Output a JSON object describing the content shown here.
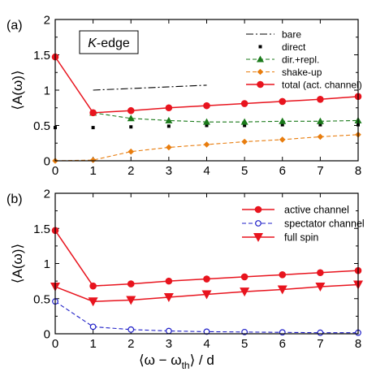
{
  "chart_data": [
    {
      "type": "line",
      "panel_label": "(a)",
      "annotation": "K-edge",
      "ylabel": "⟨A(ω)⟩",
      "xlim": [
        0,
        8
      ],
      "ylim": [
        0,
        2
      ],
      "x_ticks": [
        "0",
        "1",
        "2",
        "3",
        "4",
        "5",
        "6",
        "7",
        "8"
      ],
      "y_ticks": [
        "0",
        "0.5",
        "1",
        "1.5",
        "2"
      ],
      "legend_position": "top-right",
      "series": [
        {
          "name": "bare",
          "color": "#000000",
          "style": "dash-dot",
          "marker": "none",
          "x": [
            1,
            4
          ],
          "y": [
            1.0,
            1.07
          ]
        },
        {
          "name": "direct",
          "color": "#000000",
          "style": "none",
          "marker": "square",
          "x": [
            0,
            1,
            2,
            3,
            4,
            5,
            6,
            7,
            8
          ],
          "y": [
            0.47,
            0.47,
            0.48,
            0.49,
            0.5,
            0.5,
            0.51,
            0.51,
            0.51
          ]
        },
        {
          "name": "dir.+repl.",
          "color": "#1a7a1a",
          "style": "dashed",
          "marker": "triangle-up",
          "x": [
            1,
            2,
            3,
            4,
            5,
            6,
            7,
            8
          ],
          "y": [
            0.68,
            0.6,
            0.57,
            0.55,
            0.55,
            0.56,
            0.56,
            0.57
          ]
        },
        {
          "name": "shake-up",
          "color": "#e87d0e",
          "style": "dashed",
          "marker": "diamond",
          "x": [
            0,
            1,
            2,
            3,
            4,
            5,
            6,
            7,
            8
          ],
          "y": [
            0.0,
            0.01,
            0.13,
            0.19,
            0.23,
            0.27,
            0.3,
            0.34,
            0.37
          ]
        },
        {
          "name": "total (act. channel)",
          "color": "#e8141e",
          "style": "solid",
          "marker": "circle",
          "x": [
            0,
            1,
            2,
            3,
            4,
            5,
            6,
            7,
            8
          ],
          "y": [
            1.47,
            0.68,
            0.71,
            0.75,
            0.78,
            0.81,
            0.84,
            0.87,
            0.91
          ]
        }
      ]
    },
    {
      "type": "line",
      "panel_label": "(b)",
      "xlabel": "⟨ω − ω",
      "xlabel_sub": "th",
      "xlabel_tail": "⟩ / d",
      "ylabel": "⟨A(ω)⟩",
      "xlim": [
        0,
        8
      ],
      "ylim": [
        0,
        2
      ],
      "x_ticks": [
        "0",
        "1",
        "2",
        "3",
        "4",
        "5",
        "6",
        "7",
        "8"
      ],
      "y_ticks": [
        "0",
        "0.5",
        "1",
        "1.5",
        "2"
      ],
      "legend_position": "top-right",
      "series": [
        {
          "name": "active channel",
          "color": "#e8141e",
          "style": "solid",
          "marker": "circle",
          "x": [
            0,
            1,
            2,
            3,
            4,
            5,
            6,
            7,
            8
          ],
          "y": [
            1.47,
            0.68,
            0.71,
            0.75,
            0.78,
            0.81,
            0.84,
            0.87,
            0.9
          ]
        },
        {
          "name": "spectator channel",
          "color": "#1f1fc8",
          "style": "dashed",
          "marker": "open-circle",
          "x": [
            0,
            1,
            2,
            3,
            4,
            5,
            6,
            7,
            8
          ],
          "y": [
            0.46,
            0.1,
            0.06,
            0.04,
            0.03,
            0.025,
            0.02,
            0.015,
            0.015
          ]
        },
        {
          "name": "full spin",
          "color": "#e8141e",
          "style": "solid",
          "marker": "triangle-down",
          "x": [
            0,
            1,
            2,
            3,
            4,
            5,
            6,
            7,
            8
          ],
          "y": [
            0.67,
            0.46,
            0.48,
            0.52,
            0.56,
            0.6,
            0.63,
            0.67,
            0.7
          ]
        }
      ]
    }
  ]
}
